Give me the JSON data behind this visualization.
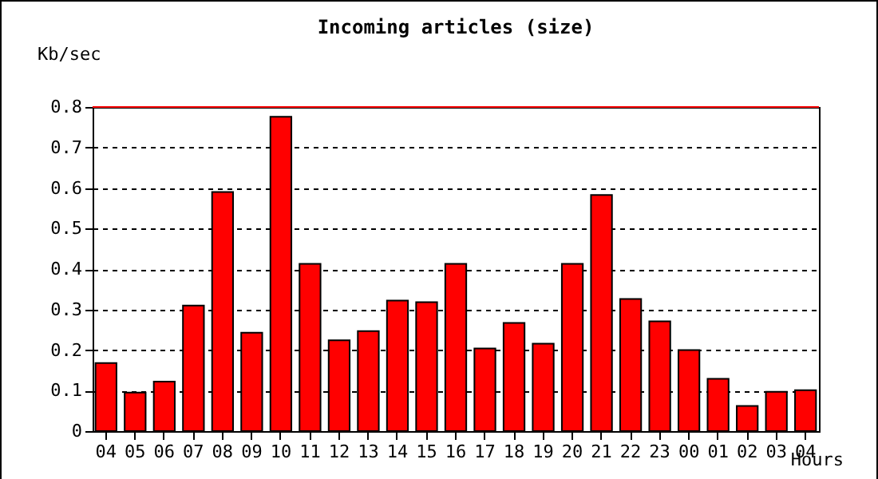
{
  "chart_data": {
    "type": "bar",
    "title": "Incoming articles (size)",
    "xlabel": "Hours",
    "ylabel": "Kb/sec",
    "categories": [
      "04",
      "05",
      "06",
      "07",
      "08",
      "09",
      "10",
      "11",
      "12",
      "13",
      "14",
      "15",
      "16",
      "17",
      "18",
      "19",
      "20",
      "21",
      "22",
      "23",
      "00",
      "01",
      "02",
      "03",
      "04"
    ],
    "series": [
      {
        "color": "#ff0000",
        "values": [
          0.168,
          0.095,
          0.122,
          0.31,
          0.59,
          0.243,
          0.776,
          0.413,
          0.224,
          0.247,
          0.322,
          0.318,
          0.413,
          0.204,
          0.267,
          0.216,
          0.413,
          0.583,
          0.326,
          0.271,
          0.2,
          0.129,
          0.062,
          0.097,
          0.101
        ]
      }
    ],
    "ylim": [
      0,
      0.8
    ],
    "yticks": [
      0,
      0.1,
      0.2,
      0.3,
      0.4,
      0.5,
      0.6,
      0.7,
      0.8
    ],
    "grid": "y",
    "legend": false,
    "ref_lines": [
      {
        "axis": "y",
        "value": 0.8,
        "color": "#ff0000"
      }
    ]
  }
}
